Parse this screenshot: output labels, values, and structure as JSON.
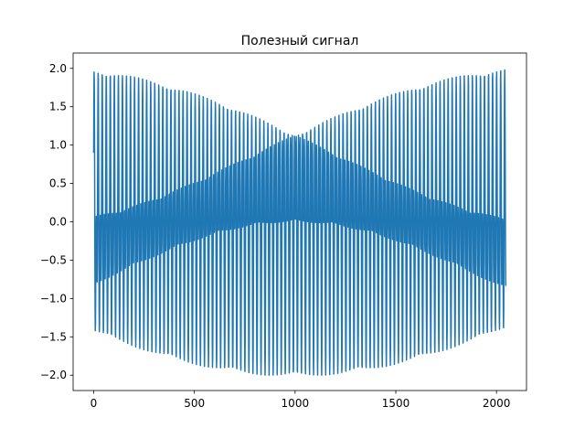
{
  "chart_data": {
    "type": "line",
    "title": "Полезный сигнал",
    "xlabel": "",
    "ylabel": "",
    "xlim": [
      -102,
      2149
    ],
    "ylim": [
      -2.2,
      2.2
    ],
    "x_ticks": [
      0,
      500,
      1000,
      1500,
      2000
    ],
    "x_tick_labels": [
      "0",
      "500",
      "1000",
      "1500",
      "2000"
    ],
    "y_ticks": [
      -2.0,
      -1.5,
      -1.0,
      -0.5,
      0.0,
      0.5,
      1.0,
      1.5,
      2.0
    ],
    "y_tick_labels": [
      "−2.0",
      "−1.5",
      "−1.0",
      "−0.5",
      "0.0",
      "0.5",
      "1.0",
      "1.5",
      "2.0"
    ],
    "grid": false,
    "legend": "none",
    "series": [
      {
        "color": "#1f77b4",
        "x_start": 0,
        "x_end": 2047,
        "num_points": 2048,
        "components": [
          {
            "amplitude": 1.0,
            "cycles_per_sample": 0.05,
            "phase": 1.1
          },
          {
            "amplitude": 1.0,
            "cycles_per_sample": 0.0996,
            "phase": 0.0
          }
        ],
        "y_min": -2.0,
        "y_max": 1.98,
        "y_last": -0.8
      }
    ]
  }
}
